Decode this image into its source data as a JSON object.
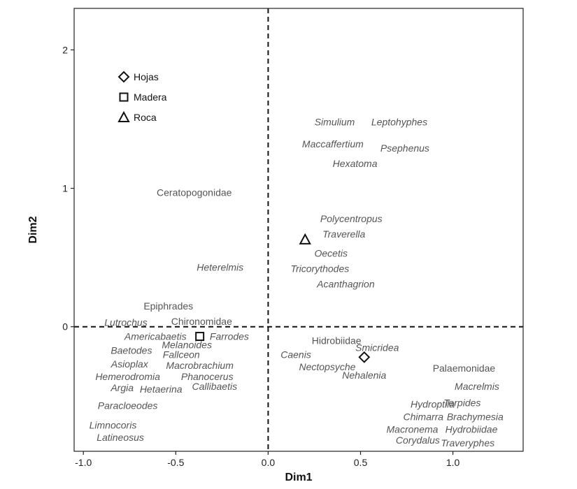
{
  "chart_data": {
    "type": "scatter",
    "xlabel": "Dim1",
    "ylabel": "Dim2",
    "xlim": [
      -1.05,
      1.38
    ],
    "ylim": [
      -0.9,
      2.3
    ],
    "xticks": [
      -1.0,
      -0.5,
      0.0,
      0.5,
      1.0
    ],
    "xtick_labels": [
      "-1.0",
      "-0.5",
      "0.0",
      "0.5",
      "1.0"
    ],
    "yticks": [
      0,
      1,
      2
    ],
    "ytick_labels": [
      "0",
      "1",
      "2"
    ],
    "grid": false,
    "reference_lines": {
      "x": 0,
      "y": 0,
      "style": "dashed"
    },
    "legend": {
      "placement": "top-left",
      "entries": [
        {
          "label": "Hojas",
          "marker": "diamond"
        },
        {
          "label": "Madera",
          "marker": "square"
        },
        {
          "label": "Roca",
          "marker": "triangle"
        }
      ]
    },
    "substrate_points": [
      {
        "name": "Hojas",
        "marker": "diamond",
        "x": 0.52,
        "y": -0.22
      },
      {
        "name": "Madera",
        "marker": "square",
        "x": -0.37,
        "y": -0.07
      },
      {
        "name": "Roca",
        "marker": "triangle",
        "x": 0.2,
        "y": 0.63
      }
    ],
    "taxa": [
      {
        "label": "Simulium",
        "x": 0.36,
        "y": 1.48,
        "italic": true
      },
      {
        "label": "Leptohyphes",
        "x": 0.71,
        "y": 1.48,
        "italic": true
      },
      {
        "label": "Maccaffertium",
        "x": 0.35,
        "y": 1.32,
        "italic": true
      },
      {
        "label": "Psephenus",
        "x": 0.74,
        "y": 1.29,
        "italic": true
      },
      {
        "label": "Hexatoma",
        "x": 0.47,
        "y": 1.18,
        "italic": true
      },
      {
        "label": "Ceratopogonidae",
        "x": -0.4,
        "y": 0.97,
        "italic": false
      },
      {
        "label": "Polycentropus",
        "x": 0.45,
        "y": 0.78,
        "italic": true
      },
      {
        "label": "Traverella",
        "x": 0.41,
        "y": 0.67,
        "italic": true
      },
      {
        "label": "Oecetis",
        "x": 0.34,
        "y": 0.53,
        "italic": true
      },
      {
        "label": "Heterelmis",
        "x": -0.26,
        "y": 0.43,
        "italic": true
      },
      {
        "label": "Tricorythodes",
        "x": 0.28,
        "y": 0.42,
        "italic": true
      },
      {
        "label": "Acanthagrion",
        "x": 0.42,
        "y": 0.31,
        "italic": true
      },
      {
        "label": "Epiphrades",
        "x": -0.54,
        "y": 0.15,
        "italic": false
      },
      {
        "label": "Chironomidae",
        "x": -0.36,
        "y": 0.04,
        "italic": false
      },
      {
        "label": "Lutrochus",
        "x": -0.77,
        "y": 0.03,
        "italic": true
      },
      {
        "label": "Americabaetis",
        "x": -0.61,
        "y": -0.07,
        "italic": true
      },
      {
        "label": "Farrodes",
        "x": -0.21,
        "y": -0.07,
        "italic": true
      },
      {
        "label": "Hidrobiidae",
        "x": 0.37,
        "y": -0.1,
        "italic": false
      },
      {
        "label": "Smicridea",
        "x": 0.59,
        "y": -0.15,
        "italic": true
      },
      {
        "label": "Melanoides",
        "x": -0.44,
        "y": -0.13,
        "italic": true
      },
      {
        "label": "Baetodes",
        "x": -0.74,
        "y": -0.17,
        "italic": true
      },
      {
        "label": "Fallceon",
        "x": -0.47,
        "y": -0.2,
        "italic": true
      },
      {
        "label": "Caenis",
        "x": 0.15,
        "y": -0.2,
        "italic": true
      },
      {
        "label": "Asioplax",
        "x": -0.75,
        "y": -0.27,
        "italic": true
      },
      {
        "label": "Macrobrachium",
        "x": -0.37,
        "y": -0.28,
        "italic": true
      },
      {
        "label": "Nectopsyche",
        "x": 0.32,
        "y": -0.29,
        "italic": true
      },
      {
        "label": "Palaemonidae",
        "x": 1.06,
        "y": -0.3,
        "italic": false
      },
      {
        "label": "Hemerodromia",
        "x": -0.76,
        "y": -0.36,
        "italic": true
      },
      {
        "label": "Phanocerus",
        "x": -0.33,
        "y": -0.36,
        "italic": true
      },
      {
        "label": "Nehalenia",
        "x": 0.52,
        "y": -0.35,
        "italic": true
      },
      {
        "label": "Argia",
        "x": -0.79,
        "y": -0.44,
        "italic": true
      },
      {
        "label": "Hetaerina",
        "x": -0.58,
        "y": -0.45,
        "italic": true
      },
      {
        "label": "Callibaetis",
        "x": -0.29,
        "y": -0.43,
        "italic": true
      },
      {
        "label": "Macrelmis",
        "x": 1.13,
        "y": -0.43,
        "italic": true
      },
      {
        "label": "Paracloeodes",
        "x": -0.76,
        "y": -0.57,
        "italic": true
      },
      {
        "label": "Hydroptila",
        "x": 0.89,
        "y": -0.56,
        "italic": true
      },
      {
        "label": "Terpides",
        "x": 1.05,
        "y": -0.55,
        "italic": true
      },
      {
        "label": "Chimarra",
        "x": 0.84,
        "y": -0.65,
        "italic": true
      },
      {
        "label": "Brachymesia",
        "x": 1.12,
        "y": -0.65,
        "italic": true
      },
      {
        "label": "Limnocoris",
        "x": -0.84,
        "y": -0.71,
        "italic": true
      },
      {
        "label": "Macronema",
        "x": 0.78,
        "y": -0.74,
        "italic": true
      },
      {
        "label": "Hydrobiidae",
        "x": 1.1,
        "y": -0.74,
        "italic": true
      },
      {
        "label": "Latineosus",
        "x": -0.8,
        "y": -0.8,
        "italic": true
      },
      {
        "label": "Corydalus",
        "x": 0.81,
        "y": -0.82,
        "italic": true
      },
      {
        "label": "Traveryphes",
        "x": 1.08,
        "y": -0.84,
        "italic": true
      }
    ]
  }
}
